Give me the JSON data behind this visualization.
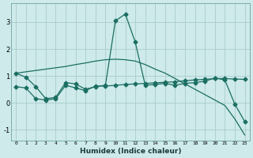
{
  "xlabel": "Humidex (Indice chaleur)",
  "bg_color": "#ceeaea",
  "line_color": "#1a6e62",
  "grid_color": "#aacccc",
  "xlim": [
    -0.5,
    23.5
  ],
  "ylim": [
    -1.4,
    3.7
  ],
  "yticks": [
    -1,
    0,
    1,
    2,
    3
  ],
  "xticks": [
    0,
    1,
    2,
    3,
    4,
    5,
    6,
    7,
    8,
    9,
    10,
    11,
    12,
    13,
    14,
    15,
    16,
    17,
    18,
    19,
    20,
    21,
    22,
    23
  ],
  "line1_x": [
    0,
    1,
    2,
    3,
    4,
    5,
    6,
    7,
    8,
    9,
    10,
    11,
    12,
    13,
    14,
    15,
    16,
    17,
    18,
    19,
    20,
    21,
    22,
    23
  ],
  "line1_y": [
    1.1,
    0.95,
    0.6,
    0.15,
    0.2,
    0.75,
    0.7,
    0.5,
    0.6,
    0.65,
    3.05,
    3.3,
    2.25,
    0.65,
    0.68,
    0.72,
    0.65,
    0.72,
    0.75,
    0.8,
    0.92,
    0.85,
    -0.05,
    -0.7
  ],
  "line2_x": [
    0,
    1,
    2,
    3,
    4,
    5,
    6,
    7,
    8,
    9,
    10,
    11,
    12,
    13,
    14,
    15,
    16,
    17,
    18,
    19,
    20,
    21,
    22,
    23
  ],
  "line2_y": [
    1.1,
    1.15,
    1.2,
    1.25,
    1.3,
    1.35,
    1.42,
    1.48,
    1.55,
    1.6,
    1.62,
    1.6,
    1.55,
    1.42,
    1.25,
    1.1,
    0.9,
    0.7,
    0.5,
    0.3,
    0.1,
    -0.1,
    -0.6,
    -1.2
  ],
  "line3_x": [
    0,
    1,
    2,
    3,
    4,
    5,
    6,
    7,
    8,
    9,
    10,
    11,
    12,
    13,
    14,
    15,
    16,
    17,
    18,
    19,
    20,
    21,
    22,
    23
  ],
  "line3_y": [
    0.6,
    0.55,
    0.15,
    0.1,
    0.15,
    0.65,
    0.55,
    0.45,
    0.62,
    0.62,
    0.65,
    0.68,
    0.7,
    0.72,
    0.74,
    0.76,
    0.78,
    0.82,
    0.85,
    0.87,
    0.9,
    0.9,
    0.88,
    0.87
  ]
}
